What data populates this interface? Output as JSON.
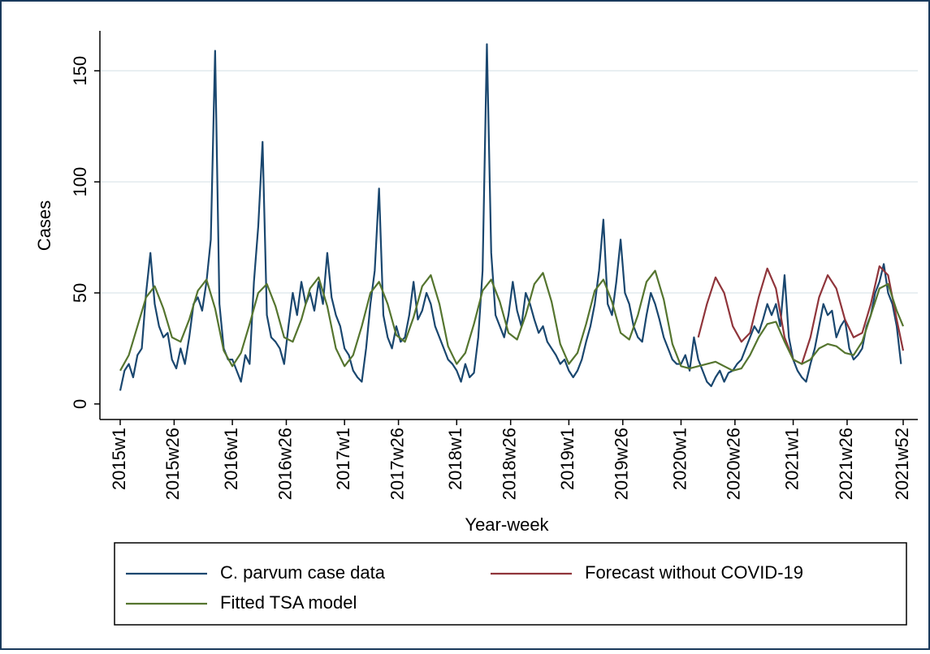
{
  "chart_data": {
    "type": "line",
    "x_label": "Year-week",
    "y_label": "Cases",
    "xlim": [
      "2015w1",
      "2021w52"
    ],
    "xticks": [
      "2015w1",
      "2015w26",
      "2016w1",
      "2016w26",
      "2017w1",
      "2017w26",
      "2018w1",
      "2018w26",
      "2019w1",
      "2019w26",
      "2020w1",
      "2020w26",
      "2021w1",
      "2021w26",
      "2021w52"
    ],
    "ylim": [
      -7,
      168
    ],
    "yticks": [
      0,
      50,
      100,
      150
    ],
    "grid": true,
    "legend": "bottom",
    "series": [
      {
        "name": "C. parvum case data",
        "color": "#1a476f",
        "x": [
          "2015w1",
          "2015w3",
          "2015w5",
          "2015w7",
          "2015w9",
          "2015w11",
          "2015w13",
          "2015w15",
          "2015w17",
          "2015w19",
          "2015w21",
          "2015w23",
          "2015w25",
          "2015w27",
          "2015w29",
          "2015w31",
          "2015w33",
          "2015w35",
          "2015w37",
          "2015w39",
          "2015w41",
          "2015w43",
          "2015w45",
          "2015w47",
          "2015w49",
          "2015w51",
          "2016w1",
          "2016w3",
          "2016w5",
          "2016w7",
          "2016w9",
          "2016w11",
          "2016w13",
          "2016w15",
          "2016w17",
          "2016w19",
          "2016w21",
          "2016w23",
          "2016w25",
          "2016w27",
          "2016w29",
          "2016w31",
          "2016w33",
          "2016w35",
          "2016w37",
          "2016w39",
          "2016w41",
          "2016w43",
          "2016w45",
          "2016w47",
          "2016w49",
          "2016w51",
          "2017w1",
          "2017w3",
          "2017w5",
          "2017w7",
          "2017w9",
          "2017w11",
          "2017w13",
          "2017w15",
          "2017w17",
          "2017w19",
          "2017w21",
          "2017w23",
          "2017w25",
          "2017w27",
          "2017w29",
          "2017w31",
          "2017w33",
          "2017w35",
          "2017w37",
          "2017w39",
          "2017w41",
          "2017w43",
          "2017w45",
          "2017w47",
          "2017w49",
          "2017w51",
          "2018w1",
          "2018w3",
          "2018w5",
          "2018w7",
          "2018w9",
          "2018w11",
          "2018w13",
          "2018w15",
          "2018w17",
          "2018w19",
          "2018w21",
          "2018w23",
          "2018w25",
          "2018w27",
          "2018w29",
          "2018w31",
          "2018w33",
          "2018w35",
          "2018w37",
          "2018w39",
          "2018w41",
          "2018w43",
          "2018w45",
          "2018w47",
          "2018w49",
          "2018w51",
          "2019w1",
          "2019w3",
          "2019w5",
          "2019w7",
          "2019w9",
          "2019w11",
          "2019w13",
          "2019w15",
          "2019w17",
          "2019w19",
          "2019w21",
          "2019w23",
          "2019w25",
          "2019w27",
          "2019w29",
          "2019w31",
          "2019w33",
          "2019w35",
          "2019w37",
          "2019w39",
          "2019w41",
          "2019w43",
          "2019w45",
          "2019w47",
          "2019w49",
          "2019w51",
          "2020w1",
          "2020w3",
          "2020w5",
          "2020w7",
          "2020w9",
          "2020w11",
          "2020w13",
          "2020w15",
          "2020w17",
          "2020w19",
          "2020w21",
          "2020w23",
          "2020w25",
          "2020w27",
          "2020w29",
          "2020w31",
          "2020w33",
          "2020w35",
          "2020w37",
          "2020w39",
          "2020w41",
          "2020w43",
          "2020w45",
          "2020w47",
          "2020w49",
          "2020w51",
          "2021w1",
          "2021w3",
          "2021w5",
          "2021w7",
          "2021w9",
          "2021w11",
          "2021w13",
          "2021w15",
          "2021w17",
          "2021w19",
          "2021w21",
          "2021w23",
          "2021w25",
          "2021w27",
          "2021w29",
          "2021w31",
          "2021w33",
          "2021w35",
          "2021w37",
          "2021w39",
          "2021w41",
          "2021w43",
          "2021w45",
          "2021w47",
          "2021w49",
          "2021w51"
        ],
        "values": [
          6,
          15,
          18,
          12,
          22,
          25,
          50,
          68,
          45,
          35,
          30,
          32,
          20,
          16,
          25,
          18,
          30,
          45,
          48,
          42,
          55,
          74,
          159,
          45,
          25,
          20,
          20,
          15,
          10,
          22,
          18,
          55,
          80,
          118,
          40,
          30,
          28,
          25,
          18,
          35,
          50,
          40,
          55,
          45,
          50,
          42,
          55,
          45,
          68,
          48,
          40,
          35,
          25,
          22,
          15,
          12,
          10,
          25,
          45,
          60,
          97,
          40,
          30,
          25,
          35,
          28,
          30,
          40,
          55,
          38,
          42,
          50,
          45,
          35,
          30,
          25,
          20,
          18,
          15,
          10,
          18,
          12,
          14,
          30,
          60,
          162,
          68,
          40,
          35,
          30,
          40,
          55,
          42,
          35,
          50,
          45,
          38,
          32,
          35,
          28,
          25,
          22,
          18,
          20,
          15,
          12,
          15,
          20,
          28,
          35,
          45,
          60,
          83,
          45,
          40,
          55,
          74,
          50,
          45,
          35,
          30,
          28,
          40,
          50,
          45,
          38,
          30,
          25,
          20,
          18,
          18,
          22,
          15,
          30,
          20,
          15,
          10,
          8,
          12,
          15,
          10,
          14,
          15,
          18,
          20,
          25,
          30,
          35,
          32,
          38,
          45,
          40,
          45,
          35,
          58,
          30,
          20,
          15,
          12,
          10,
          18,
          25,
          35,
          45,
          40,
          42,
          30,
          35,
          38,
          25,
          20,
          22,
          25,
          35,
          40,
          50,
          55,
          63,
          50,
          45,
          35,
          18
        ]
      },
      {
        "name": "Forecast without COVID-19",
        "color": "#90353b",
        "x": [
          "2020w9",
          "2020w13",
          "2020w17",
          "2020w21",
          "2020w25",
          "2020w29",
          "2020w33",
          "2020w37",
          "2020w41",
          "2020w45",
          "2020w49",
          "2021w1",
          "2021w5",
          "2021w9",
          "2021w13",
          "2021w17",
          "2021w21",
          "2021w25",
          "2021w29",
          "2021w33",
          "2021w37",
          "2021w41",
          "2021w45",
          "2021w49",
          "2021w52"
        ],
        "values": [
          30,
          45,
          57,
          50,
          35,
          28,
          32,
          48,
          61,
          52,
          30,
          20,
          18,
          30,
          48,
          58,
          52,
          38,
          30,
          32,
          45,
          62,
          58,
          38,
          24
        ]
      },
      {
        "name": "Fitted TSA model",
        "color": "#55752f",
        "x": [
          "2015w1",
          "2015w5",
          "2015w9",
          "2015w13",
          "2015w17",
          "2015w21",
          "2015w25",
          "2015w29",
          "2015w33",
          "2015w37",
          "2015w41",
          "2015w45",
          "2015w49",
          "2016w1",
          "2016w5",
          "2016w9",
          "2016w13",
          "2016w17",
          "2016w21",
          "2016w25",
          "2016w29",
          "2016w33",
          "2016w37",
          "2016w41",
          "2016w45",
          "2016w49",
          "2017w1",
          "2017w5",
          "2017w9",
          "2017w13",
          "2017w17",
          "2017w21",
          "2017w25",
          "2017w29",
          "2017w33",
          "2017w37",
          "2017w41",
          "2017w45",
          "2017w49",
          "2018w1",
          "2018w5",
          "2018w9",
          "2018w13",
          "2018w17",
          "2018w21",
          "2018w25",
          "2018w29",
          "2018w33",
          "2018w37",
          "2018w41",
          "2018w45",
          "2018w49",
          "2019w1",
          "2019w5",
          "2019w9",
          "2019w13",
          "2019w17",
          "2019w21",
          "2019w25",
          "2019w29",
          "2019w33",
          "2019w37",
          "2019w41",
          "2019w45",
          "2019w49",
          "2020w1",
          "2020w5",
          "2020w9",
          "2020w13",
          "2020w17",
          "2020w21",
          "2020w25",
          "2020w29",
          "2020w33",
          "2020w37",
          "2020w41",
          "2020w45",
          "2020w49",
          "2021w1",
          "2021w5",
          "2021w9",
          "2021w13",
          "2021w17",
          "2021w21",
          "2021w25",
          "2021w29",
          "2021w33",
          "2021w37",
          "2021w41",
          "2021w45",
          "2021w49",
          "2021w52"
        ],
        "values": [
          15,
          22,
          35,
          48,
          53,
          43,
          30,
          28,
          38,
          51,
          56,
          43,
          24,
          17,
          23,
          36,
          50,
          54,
          44,
          30,
          28,
          38,
          52,
          57,
          44,
          25,
          17,
          22,
          35,
          50,
          55,
          45,
          31,
          28,
          39,
          53,
          58,
          45,
          26,
          18,
          23,
          36,
          51,
          56,
          46,
          32,
          29,
          40,
          54,
          59,
          46,
          27,
          18,
          23,
          36,
          51,
          56,
          46,
          32,
          29,
          40,
          55,
          60,
          47,
          27,
          17,
          16,
          17,
          18,
          19,
          17,
          15,
          16,
          22,
          30,
          36,
          37,
          28,
          20,
          18,
          20,
          25,
          27,
          26,
          23,
          22,
          28,
          40,
          52,
          54,
          42,
          35
        ]
      }
    ]
  }
}
